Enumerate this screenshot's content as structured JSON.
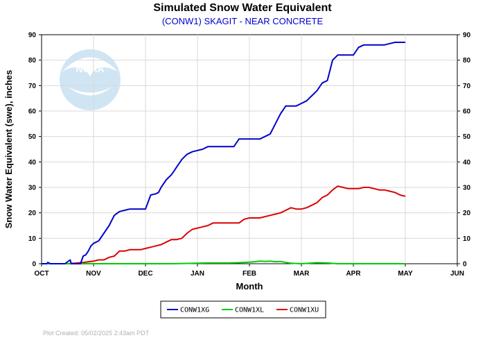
{
  "chart_data": {
    "type": "line",
    "title": "Simulated Snow Water Equivalent",
    "subtitle": "(CONW1) SKAGIT - NEAR CONCRETE",
    "xlabel": "Month",
    "ylabel": "Snow Water Equivalent (swe),  inches",
    "xlim": [
      0,
      8
    ],
    "ylim": [
      0,
      90
    ],
    "x_ticks": [
      "OCT",
      "NOV",
      "DEC",
      "JAN",
      "FEB",
      "MAR",
      "APR",
      "MAY",
      "JUN"
    ],
    "y_ticks": [
      0,
      10,
      20,
      30,
      40,
      50,
      60,
      70,
      80,
      90
    ],
    "grid": true,
    "legend_position": "bottom",
    "series": [
      {
        "name": "CONW1XG",
        "color": "#0000cc",
        "x": [
          0,
          0.1,
          0.12,
          0.17,
          0.3,
          0.45,
          0.55,
          0.57,
          0.65,
          0.75,
          0.8,
          0.85,
          0.9,
          0.95,
          1.0,
          1.1,
          1.2,
          1.3,
          1.4,
          1.5,
          1.6,
          1.7,
          1.8,
          1.9,
          2.0,
          2.1,
          2.2,
          2.25,
          2.3,
          2.4,
          2.5,
          2.6,
          2.7,
          2.8,
          2.9,
          3.0,
          3.1,
          3.2,
          3.3,
          3.4,
          3.5,
          3.6,
          3.7,
          3.8,
          3.9,
          4.0,
          4.1,
          4.2,
          4.3,
          4.4,
          4.5,
          4.6,
          4.7,
          4.8,
          4.9,
          5.0,
          5.1,
          5.2,
          5.3,
          5.4,
          5.5,
          5.6,
          5.7,
          5.8,
          5.9,
          6.0,
          6.1,
          6.2,
          6.3,
          6.4,
          6.5,
          6.6,
          6.7,
          6.8,
          6.9,
          7.0
        ],
        "y": [
          0,
          0,
          0.5,
          0,
          0,
          0,
          1.5,
          0,
          0,
          0,
          3,
          3.5,
          5,
          7,
          8,
          9,
          12,
          15,
          19,
          20.5,
          21,
          21.5,
          21.5,
          21.5,
          21.5,
          27,
          27.5,
          28,
          30,
          33,
          35,
          38,
          41,
          43,
          44,
          44.5,
          45,
          46,
          46,
          46,
          46,
          46,
          46,
          49,
          49,
          49,
          49,
          49,
          50,
          51,
          55,
          59,
          62,
          62,
          62,
          63,
          64,
          66,
          68,
          71,
          72,
          80,
          82,
          82,
          82,
          82,
          85,
          86,
          86,
          86,
          86,
          86,
          86.5,
          87,
          87,
          87
        ]
      },
      {
        "name": "CONW1XL",
        "color": "#00cc00",
        "x": [
          0,
          0.5,
          1.0,
          1.5,
          2.0,
          2.5,
          3.0,
          3.2,
          3.4,
          3.6,
          3.8,
          4.0,
          4.1,
          4.2,
          4.3,
          4.4,
          4.5,
          4.6,
          4.7,
          4.8,
          5.0,
          5.3,
          5.5,
          5.7,
          6.0,
          6.5,
          7.0
        ],
        "y": [
          0,
          0,
          0,
          0,
          0,
          0,
          0.2,
          0.3,
          0.3,
          0.3,
          0.4,
          0.6,
          0.8,
          1.0,
          0.9,
          1.0,
          0.8,
          0.9,
          0.5,
          0.2,
          0,
          0.4,
          0.3,
          0,
          0,
          0,
          0
        ]
      },
      {
        "name": "CONW1XU",
        "color": "#dd0000",
        "x": [
          0,
          0.5,
          0.8,
          1.0,
          1.1,
          1.2,
          1.3,
          1.4,
          1.5,
          1.6,
          1.7,
          1.8,
          1.9,
          2.0,
          2.1,
          2.2,
          2.3,
          2.4,
          2.5,
          2.6,
          2.7,
          2.8,
          2.9,
          3.0,
          3.1,
          3.2,
          3.3,
          3.4,
          3.5,
          3.6,
          3.7,
          3.8,
          3.9,
          4.0,
          4.1,
          4.2,
          4.3,
          4.4,
          4.5,
          4.6,
          4.7,
          4.8,
          4.9,
          5.0,
          5.1,
          5.2,
          5.3,
          5.4,
          5.5,
          5.6,
          5.7,
          5.8,
          5.9,
          6.0,
          6.1,
          6.2,
          6.3,
          6.4,
          6.5,
          6.6,
          6.7,
          6.8,
          6.9,
          7.0
        ],
        "y": [
          0,
          0,
          0.5,
          1,
          1.5,
          1.5,
          2.5,
          3,
          5,
          5,
          5.5,
          5.5,
          5.5,
          6,
          6.5,
          7,
          7.5,
          8.5,
          9.5,
          9.5,
          10,
          12,
          13.5,
          14,
          14.5,
          15,
          16,
          16,
          16,
          16,
          16,
          16,
          17.5,
          18,
          18,
          18,
          18.5,
          19,
          19.5,
          20,
          21,
          22,
          21.5,
          21.5,
          22,
          23,
          24,
          26,
          27,
          29,
          30.5,
          30,
          29.5,
          29.5,
          29.5,
          30,
          30,
          29.5,
          29,
          29,
          28.5,
          28,
          27,
          26.5
        ]
      }
    ]
  },
  "watermark": {
    "label": "NOAA"
  },
  "footer": {
    "created": "Plot Created: 05/02/2025 2:43am PDT"
  }
}
